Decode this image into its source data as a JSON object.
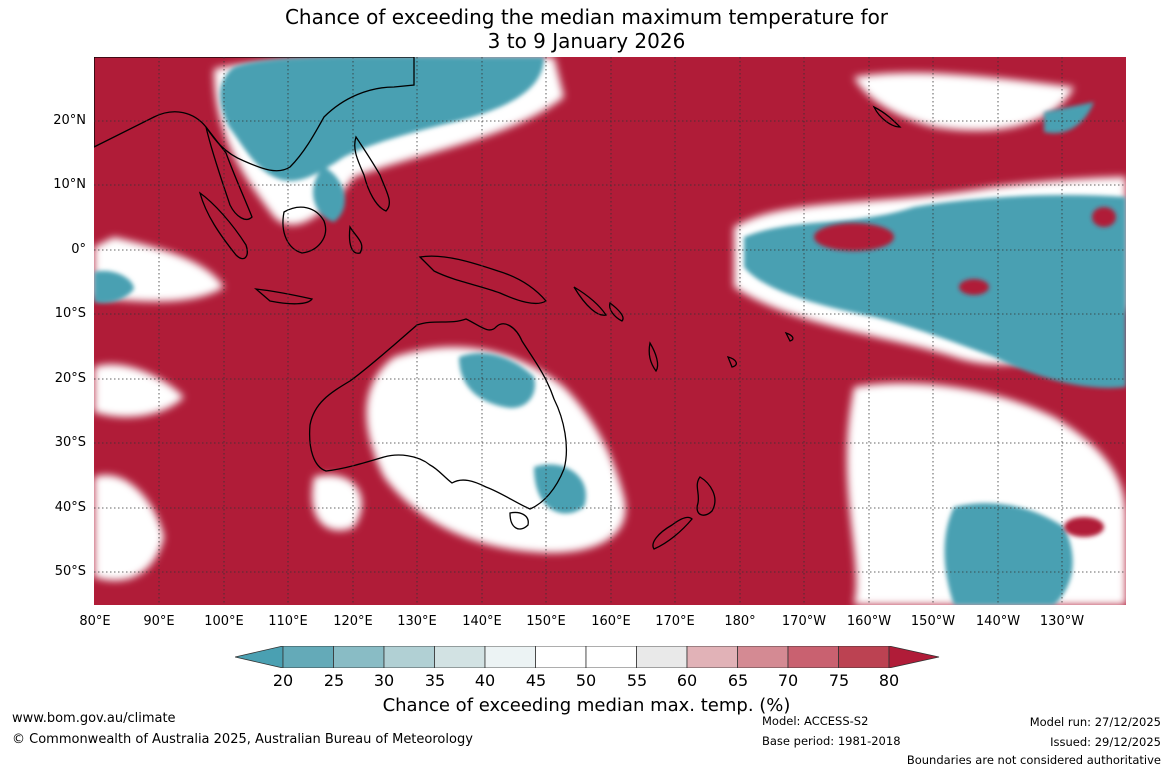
{
  "title": {
    "line1": "Chance of exceeding the median maximum temperature for",
    "line2": "3 to 9 January 2026"
  },
  "axes": {
    "lat_labels": [
      "20°N",
      "10°N",
      "0°",
      "10°S",
      "20°S",
      "30°S",
      "40°S",
      "50°S"
    ],
    "lon_labels": [
      "80°E",
      "90°E",
      "100°E",
      "110°E",
      "120°E",
      "130°E",
      "140°E",
      "150°E",
      "160°E",
      "170°E",
      "180°",
      "170°W",
      "160°W",
      "150°W",
      "140°W",
      "130°W"
    ]
  },
  "colorbar": {
    "ticks": [
      "20",
      "25",
      "30",
      "35",
      "40",
      "45",
      "50",
      "55",
      "60",
      "65",
      "70",
      "75",
      "80"
    ],
    "colors": [
      "#4aa0b2",
      "#64aab8",
      "#89bcc5",
      "#b1d0d4",
      "#d2e2e3",
      "#ecf3f4",
      "#ffffff",
      "#ffffff",
      "#e9e9e9",
      "#e1b2b7",
      "#d48a93",
      "#c96170",
      "#bc4252",
      "#b01c38"
    ],
    "label": "Chance of exceeding median max. temp. (%)"
  },
  "map_colors": {
    "warm": "#b01c38",
    "cool": "#4aa0b2",
    "land_outline": "#000000",
    "grid": "#333333"
  },
  "footer": {
    "website": "www.bom.gov.au/climate",
    "copyright": "© Commonwealth of Australia 2025, Australian Bureau of Meteorology",
    "model": "Model: ACCESS-S2",
    "base_period": "Base period: 1981-2018",
    "model_run": "Model run: 27/12/2025",
    "issued": "Issued: 29/12/2025",
    "disclaimer": "Boundaries are not considered authoritative"
  }
}
